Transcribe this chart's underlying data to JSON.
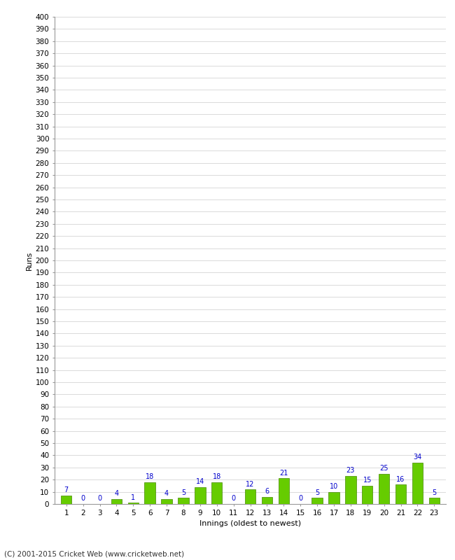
{
  "title": "",
  "xlabel": "Innings (oldest to newest)",
  "ylabel": "Runs",
  "categories": [
    "1",
    "2",
    "3",
    "4",
    "5",
    "6",
    "7",
    "8",
    "9",
    "10",
    "11",
    "12",
    "13",
    "14",
    "15",
    "16",
    "17",
    "18",
    "19",
    "20",
    "21",
    "22",
    "23"
  ],
  "values": [
    7,
    0,
    0,
    4,
    1,
    18,
    4,
    5,
    14,
    18,
    0,
    12,
    6,
    21,
    0,
    5,
    10,
    23,
    15,
    25,
    16,
    34,
    5
  ],
  "bar_color": "#66cc00",
  "bar_edge_color": "#448800",
  "label_color": "#0000cc",
  "ylim": [
    0,
    400
  ],
  "yticks": [
    0,
    10,
    20,
    30,
    40,
    50,
    60,
    70,
    80,
    90,
    100,
    110,
    120,
    130,
    140,
    150,
    160,
    170,
    180,
    190,
    200,
    210,
    220,
    230,
    240,
    250,
    260,
    270,
    280,
    290,
    300,
    310,
    320,
    330,
    340,
    350,
    360,
    370,
    380,
    390,
    400
  ],
  "background_color": "#ffffff",
  "grid_color": "#cccccc",
  "footer": "(C) 2001-2015 Cricket Web (www.cricketweb.net)",
  "axis_label_fontsize": 8,
  "tick_fontsize": 7.5,
  "bar_label_fontsize": 7,
  "footer_fontsize": 7.5
}
